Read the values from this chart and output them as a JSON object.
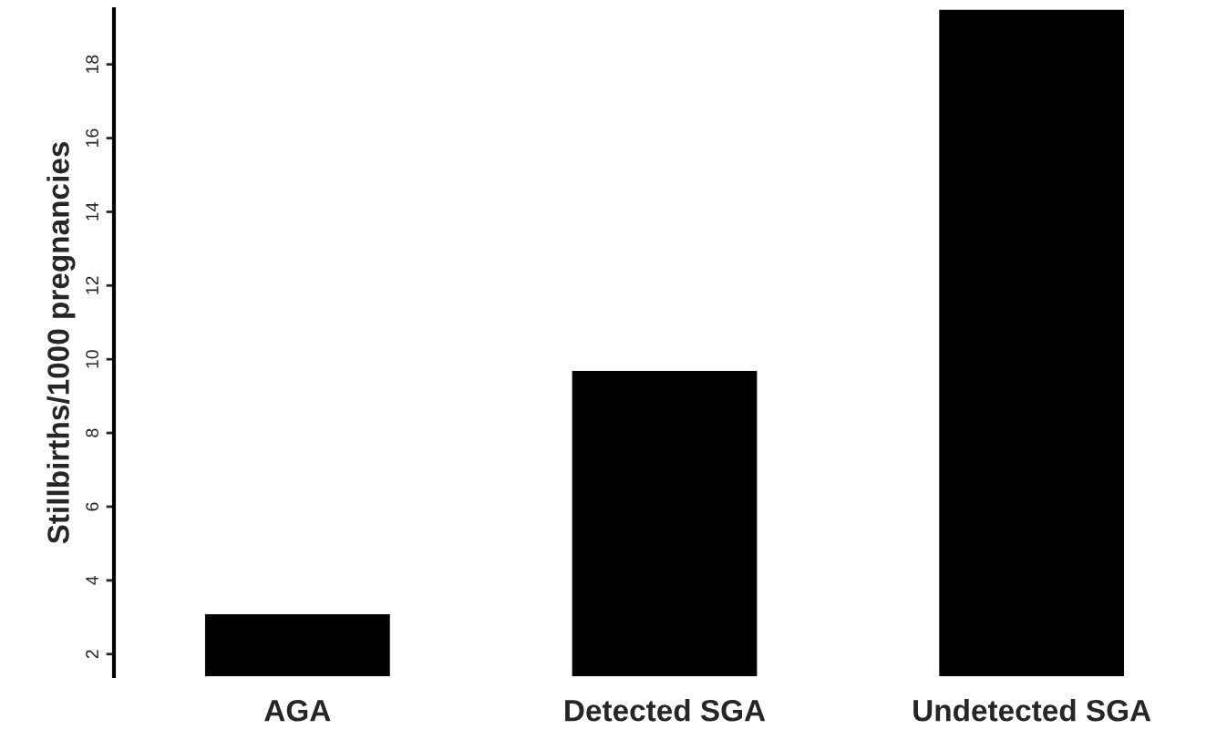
{
  "chart_data": {
    "type": "bar",
    "ylabel": "Stillbirths/1000 pregnancies",
    "categories": [
      "AGA",
      "Detected SGA",
      "Undetected SGA"
    ],
    "values": [
      3.1,
      9.7,
      19.5
    ],
    "color": "#000000",
    "ylim": [
      1.4,
      19.5
    ],
    "yticks": [
      2,
      4,
      6,
      8,
      10,
      12,
      14,
      16,
      18
    ],
    "grid": false
  }
}
